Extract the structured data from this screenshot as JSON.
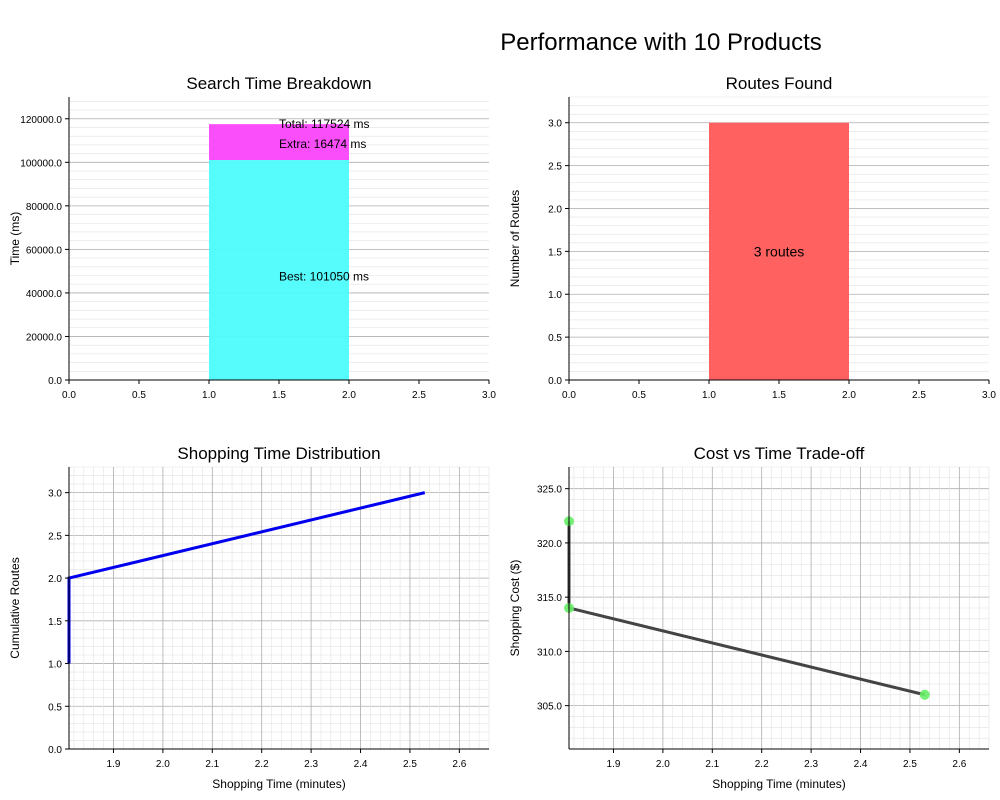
{
  "figure_title": "Performance with 10 Products",
  "chart_data": [
    {
      "id": "search",
      "type": "bar",
      "title": "Search Time Breakdown",
      "xlabel": "",
      "ylabel": "Time (ms)",
      "xlim": [
        0,
        3.0
      ],
      "ylim": [
        0,
        130000
      ],
      "xticks": [
        0,
        0.5,
        1,
        1.5,
        2,
        2.5,
        3
      ],
      "xtick_labels": [
        "0.0",
        "0.5",
        "1.0",
        "1.5",
        "2.0",
        "2.5",
        "3.0"
      ],
      "yticks": [
        0,
        20000,
        40000,
        60000,
        80000,
        100000,
        120000
      ],
      "ytick_labels": [
        "0.0",
        "20000.0",
        "40000.0",
        "60000.0",
        "80000.0",
        "100000.0",
        "120000.0"
      ],
      "grid": true,
      "stacked": true,
      "bar_x_range": [
        1,
        2
      ],
      "series": [
        {
          "values": [
            101050
          ],
          "color": "#4dfcfc"
        },
        {
          "values": [
            16474
          ],
          "color": "#fa44fa"
        }
      ],
      "annotations": [
        {
          "text": "Total: 117524 ms",
          "x": 1.5,
          "y": 117524
        },
        {
          "text": "Extra: 16474 ms",
          "x": 1.5,
          "y": 108500
        },
        {
          "text": "Best: 101050 ms",
          "x": 1.5,
          "y": 47500
        }
      ]
    },
    {
      "id": "routes",
      "type": "bar",
      "title": "Routes Found",
      "xlabel": "",
      "ylabel": "Number of Routes",
      "xlim": [
        0,
        3.0
      ],
      "ylim": [
        0,
        3.3
      ],
      "xticks": [
        0,
        0.5,
        1,
        1.5,
        2,
        2.5,
        3
      ],
      "xtick_labels": [
        "0.0",
        "0.5",
        "1.0",
        "1.5",
        "2.0",
        "2.5",
        "3.0"
      ],
      "yticks": [
        0,
        0.5,
        1,
        1.5,
        2,
        2.5,
        3
      ],
      "ytick_labels": [
        "0.0",
        "0.5",
        "1.0",
        "1.5",
        "2.0",
        "2.5",
        "3.0"
      ],
      "grid": true,
      "bar_x_range": [
        1,
        2
      ],
      "values": [
        3
      ],
      "color": "#ff6161",
      "annotations": [
        {
          "text": "3 routes",
          "x": 1.5,
          "y": 1.5
        }
      ]
    },
    {
      "id": "distribution",
      "type": "line",
      "title": "Shopping Time Distribution",
      "xlabel": "Shopping Time (minutes)",
      "ylabel": "Cumulative Routes",
      "xlim": [
        1.81,
        2.66
      ],
      "ylim": [
        0,
        3.3
      ],
      "xticks": [
        1.9,
        2.0,
        2.1,
        2.2,
        2.3,
        2.4,
        2.5,
        2.6
      ],
      "xtick_labels": [
        "1.9",
        "2.0",
        "2.1",
        "2.2",
        "2.3",
        "2.4",
        "2.5",
        "2.6"
      ],
      "yticks": [
        0,
        0.5,
        1,
        1.5,
        2,
        2.5,
        3
      ],
      "ytick_labels": [
        "0.0",
        "0.5",
        "1.0",
        "1.5",
        "2.0",
        "2.5",
        "3.0"
      ],
      "grid": true,
      "series": [
        {
          "x": [
            1.81,
            1.81,
            2.53
          ],
          "y": [
            1,
            2,
            3
          ],
          "color": "#0000ee"
        }
      ]
    },
    {
      "id": "tradeoff",
      "type": "scatter",
      "title": "Cost vs Time Trade-off",
      "xlabel": "Shopping Time (minutes)",
      "ylabel": "Shopping Cost ($)",
      "xlim": [
        1.81,
        2.66
      ],
      "ylim": [
        301,
        327
      ],
      "xticks": [
        1.9,
        2.0,
        2.1,
        2.2,
        2.3,
        2.4,
        2.5,
        2.6
      ],
      "xtick_labels": [
        "1.9",
        "2.0",
        "2.1",
        "2.2",
        "2.3",
        "2.4",
        "2.5",
        "2.6"
      ],
      "yticks": [
        305,
        310,
        315,
        320,
        325
      ],
      "ytick_labels": [
        "305.0",
        "310.0",
        "315.0",
        "320.0",
        "325.0"
      ],
      "grid": true,
      "points": {
        "x": [
          1.81,
          1.81,
          2.53
        ],
        "y": [
          322,
          314,
          306
        ],
        "color": "#66ee66"
      },
      "line": {
        "x": [
          1.81,
          1.81,
          2.53
        ],
        "y": [
          322,
          314,
          306
        ],
        "color": "#444444"
      }
    }
  ]
}
